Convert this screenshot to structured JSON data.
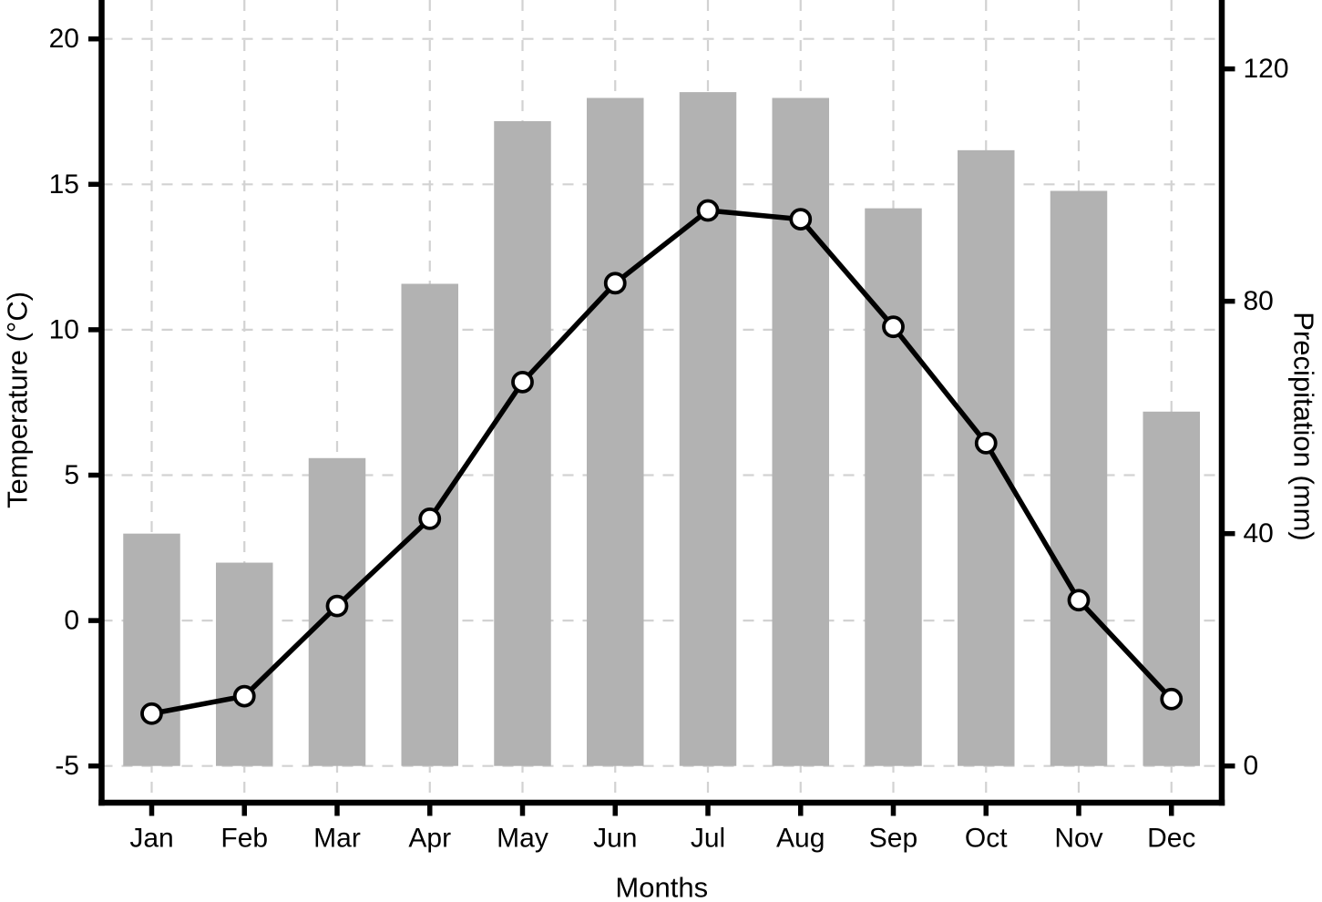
{
  "chart_data": {
    "type": "bar+line",
    "title": "",
    "categories": [
      "Jan",
      "Feb",
      "Mar",
      "Apr",
      "May",
      "Jun",
      "Jul",
      "Aug",
      "Sep",
      "Oct",
      "Nov",
      "Dec"
    ],
    "series": [
      {
        "name": "Precipitation",
        "type": "bar",
        "axis": "right",
        "unit": "mm",
        "values": [
          40,
          35,
          53,
          83,
          111,
          115,
          116,
          115,
          96,
          106,
          99,
          61
        ]
      },
      {
        "name": "Temperature",
        "type": "line",
        "axis": "left",
        "unit": "°C",
        "values": [
          -3.2,
          -2.6,
          0.5,
          3.5,
          8.2,
          11.6,
          14.1,
          13.8,
          10.1,
          6.1,
          0.7,
          -2.7
        ]
      }
    ],
    "xlabel": "Months",
    "ylabel_left": "Temperature (°C)",
    "ylabel_right": "Precipitation (mm)",
    "ylim_left": [
      -5,
      20
    ],
    "ylim_right": [
      0,
      120
    ],
    "yticks_left": [
      20,
      15,
      10,
      5,
      0,
      -5
    ],
    "yticks_right": [
      120,
      80,
      40,
      0
    ],
    "grid": "dashed, horizontal at left ticks and vertical at months",
    "legend": "none",
    "frame": "left, bottom and right axes only (no top border, plot clipped at top)",
    "styles": {
      "bar_fill": "#b2b2b2",
      "grid_color": "#d2d2d2",
      "line_color": "#000000",
      "point_fill": "#ffffff",
      "point_stroke": "#000000",
      "axis_color": "#000000",
      "background": "#ffffff"
    }
  }
}
